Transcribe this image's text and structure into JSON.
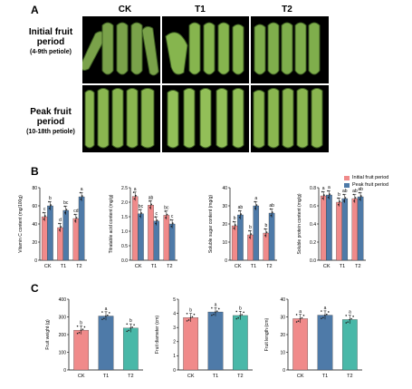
{
  "panels": {
    "a": "A",
    "b": "B",
    "c": "C"
  },
  "photo": {
    "columns": [
      "CK",
      "T1",
      "T2"
    ],
    "rows": [
      {
        "line1": "Initial fruit",
        "line2": "period",
        "sub": "(4-9th petiole)"
      },
      {
        "line1": "Peak fruit",
        "line2": "period",
        "sub": "(10-18th petiole)"
      }
    ]
  },
  "legend": [
    {
      "label": "Initial fruit period",
      "color": "#f08a8a"
    },
    {
      "label": "Peak fruit period",
      "color": "#4e7aa8"
    }
  ],
  "chart_data": [
    {
      "type": "bar",
      "panel": "B",
      "categories": [
        "CK",
        "T1",
        "T2"
      ],
      "ylabel": "Vitamin C content (mg/100g)",
      "ylim": [
        0,
        80
      ],
      "yticks": [
        0,
        20,
        40,
        60,
        80
      ],
      "series": [
        {
          "name": "Initial fruit period",
          "values": [
            48,
            36,
            46
          ],
          "letters": [
            "c",
            "d",
            "cd"
          ]
        },
        {
          "name": "Peak fruit period",
          "values": [
            60,
            55,
            70
          ],
          "letters": [
            "b",
            "bc",
            "a"
          ]
        }
      ]
    },
    {
      "type": "bar",
      "panel": "B",
      "categories": [
        "CK",
        "T1",
        "T2"
      ],
      "ylabel": "Titratable acid content (mg/g)",
      "ylim": [
        0,
        2.5
      ],
      "yticks": [
        0.0,
        0.5,
        1.0,
        1.5,
        2.0,
        2.5
      ],
      "series": [
        {
          "name": "Initial fruit period",
          "values": [
            2.2,
            1.9,
            1.55
          ],
          "letters": [
            "a",
            "ab",
            "bc"
          ]
        },
        {
          "name": "Peak fruit period",
          "values": [
            1.6,
            1.35,
            1.25
          ],
          "letters": [
            "bc",
            "c",
            "c"
          ]
        }
      ]
    },
    {
      "type": "bar",
      "panel": "B",
      "categories": [
        "CK",
        "T1",
        "T2"
      ],
      "ylabel": "Soluble sugar content (mg/g)",
      "ylim": [
        0,
        40
      ],
      "yticks": [
        0,
        10,
        20,
        30,
        40
      ],
      "series": [
        {
          "name": "Initial fruit period",
          "values": [
            19,
            14,
            15
          ],
          "letters": [
            "b",
            "b",
            "b"
          ]
        },
        {
          "name": "Peak fruit period",
          "values": [
            25,
            30,
            26
          ],
          "letters": [
            "ab",
            "a",
            "ab"
          ]
        }
      ]
    },
    {
      "type": "bar",
      "panel": "B",
      "categories": [
        "CK",
        "T1",
        "T2"
      ],
      "ylabel": "Soluble protein content (mg/g)",
      "ylim": [
        0.0,
        0.8
      ],
      "yticks": [
        0.0,
        0.2,
        0.4,
        0.6,
        0.8
      ],
      "series": [
        {
          "name": "Initial fruit period",
          "values": [
            0.71,
            0.64,
            0.68
          ],
          "letters": [
            "a",
            "b",
            "ab"
          ]
        },
        {
          "name": "Peak fruit period",
          "values": [
            0.72,
            0.68,
            0.7
          ],
          "letters": [
            "a",
            "ab",
            "ab"
          ]
        }
      ]
    },
    {
      "type": "bar",
      "panel": "C",
      "categories": [
        "CK",
        "T1",
        "T2"
      ],
      "ylabel": "Fruit weight (g)",
      "ylim": [
        0,
        400
      ],
      "yticks": [
        0,
        100,
        200,
        300,
        400
      ],
      "series": [
        {
          "values": [
            225,
            305,
            237
          ],
          "colors": [
            "#f08a8a",
            "#4e7aa8",
            "#49b8a8"
          ],
          "letters": [
            "b",
            "a",
            "b"
          ]
        }
      ]
    },
    {
      "type": "bar",
      "panel": "C",
      "categories": [
        "CK",
        "T1",
        "T2"
      ],
      "ylabel": "Fruit diameter (cm)",
      "ylim": [
        0,
        5
      ],
      "yticks": [
        0,
        1,
        2,
        3,
        4,
        5
      ],
      "series": [
        {
          "values": [
            3.7,
            4.1,
            3.85
          ],
          "colors": [
            "#f08a8a",
            "#4e7aa8",
            "#49b8a8"
          ],
          "letters": [
            "b",
            "a",
            "b"
          ]
        }
      ]
    },
    {
      "type": "bar",
      "panel": "C",
      "categories": [
        "CK",
        "T1",
        "T2"
      ],
      "ylabel": "Fruit length (cm)",
      "ylim": [
        0,
        40
      ],
      "yticks": [
        0,
        10,
        20,
        30,
        40
      ],
      "series": [
        {
          "values": [
            29,
            31,
            28.5
          ],
          "colors": [
            "#f08a8a",
            "#4e7aa8",
            "#49b8a8"
          ],
          "letters": [
            "a",
            "a",
            "a"
          ]
        }
      ]
    }
  ]
}
